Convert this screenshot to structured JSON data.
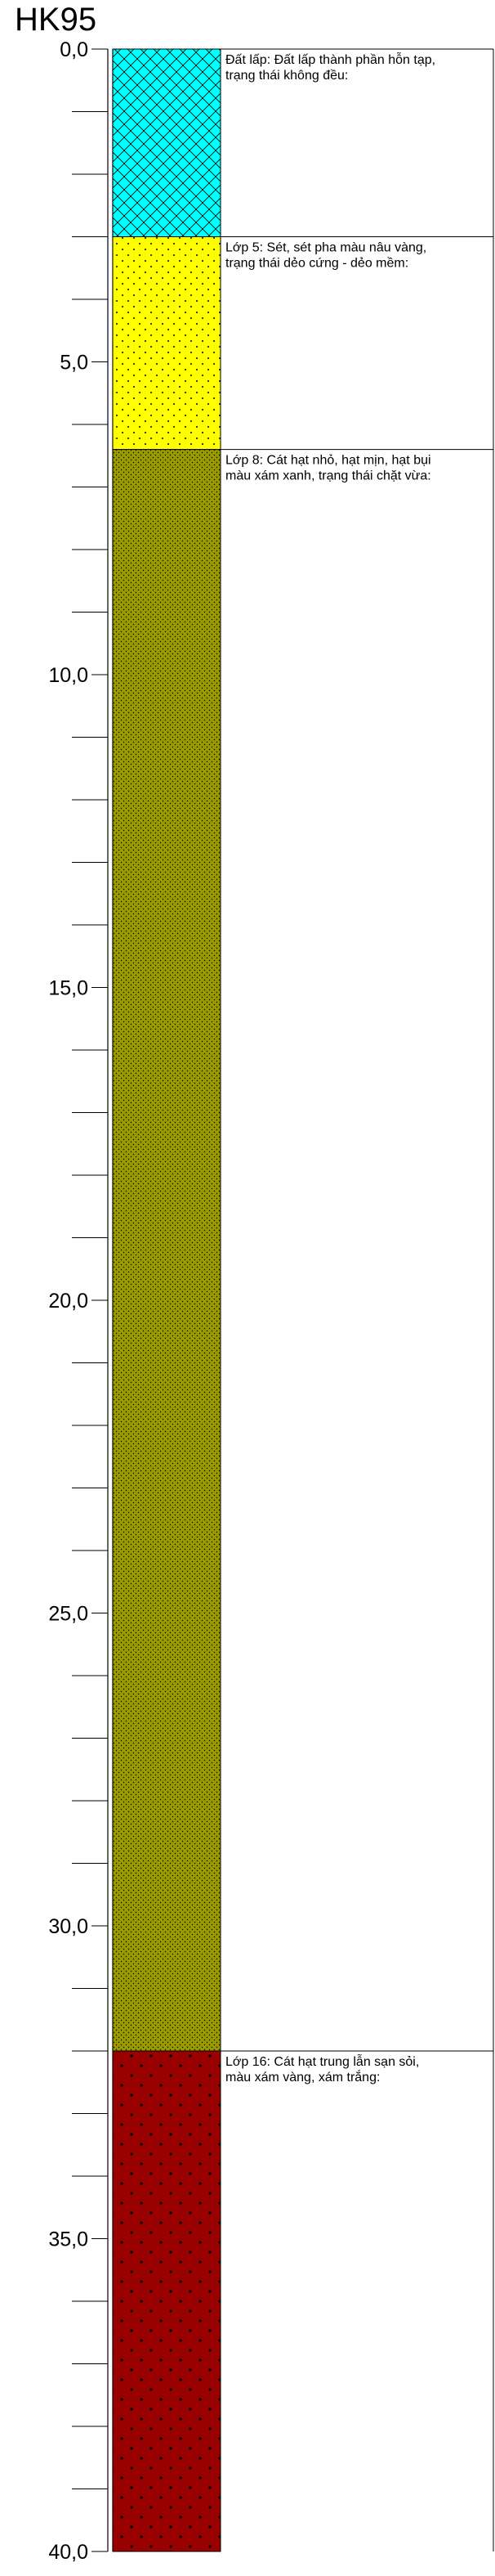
{
  "borehole": {
    "name": "HK95",
    "depth_unit": "m",
    "depth_range": [
      0,
      40
    ],
    "depth_labels": [
      "0,0",
      "5,0",
      "10,0",
      "15,0",
      "20,0",
      "25,0",
      "30,0",
      "35,0",
      "40,0"
    ],
    "minor_tick_interval": 1,
    "layers": [
      {
        "id": "fill",
        "top": 0.0,
        "bottom": 3.0,
        "fill_color": "#00ffff",
        "pattern": "crosshatch",
        "description": [
          "Đất lấp: Đất lấp thành phần hỗn tạp,",
          "trạng thái không đều:"
        ]
      },
      {
        "id": "layer-5",
        "top": 3.0,
        "bottom": 6.4,
        "fill_color": "#ffff00",
        "pattern": "dots-sparse",
        "description": [
          "Lớp 5: Sét, sét pha màu nâu vàng,",
          "trạng thái dẻo cứng - dẻo mềm:"
        ]
      },
      {
        "id": "layer-8",
        "top": 6.4,
        "bottom": 32.0,
        "fill_color": "#999900",
        "pattern": "dots-dense",
        "description": [
          "Lớp 8: Cát hạt nhỏ, hạt mịn, hạt bụi",
          "màu xám xanh, trạng thái chặt vừa:"
        ]
      },
      {
        "id": "layer-16",
        "top": 32.0,
        "bottom": 40.0,
        "fill_color": "#990000",
        "pattern": "dots-coarse",
        "description": [
          "Lớp 16: Cát hạt trung lẫn sạn sỏi,",
          "màu xám vàng, xám trắng:"
        ]
      }
    ]
  }
}
